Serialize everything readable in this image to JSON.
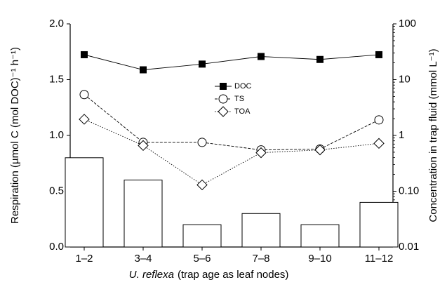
{
  "chart_data": {
    "type": "bar-line",
    "categories": [
      "1–2",
      "3–4",
      "5–6",
      "7–8",
      "9–10",
      "11–12"
    ],
    "values": [
      0.8,
      0.6,
      0.2,
      0.3,
      0.2,
      0.4
    ],
    "color": "#ffffff",
    "ylabel": "Respiration (µmol C (mol DOC)⁻¹ h⁻¹)",
    "y2label": "Concentration in trap fluid (mmol L⁻¹)",
    "xlabel_italic": "U. reflexa",
    "xlabel": "(trap age as leaf nodes)",
    "ylim": [
      0,
      2
    ],
    "yticks": [
      {
        "value": 0,
        "label": "0.0"
      },
      {
        "value": 0.5,
        "label": "0.5"
      },
      {
        "value": 1,
        "label": "1.0"
      },
      {
        "value": 1.5,
        "label": "1.5"
      },
      {
        "value": 2,
        "label": "2.0"
      }
    ],
    "y2lim": [
      0.01,
      100
    ],
    "y2ticks": [
      0.01,
      {
        "value": 0.1,
        "label": "0.10"
      },
      1,
      10,
      100
    ],
    "y2log": true,
    "legend": "top",
    "series": [
      {
        "name": "DOC",
        "color": "#000000",
        "axis": "y2",
        "marker": "square",
        "dash": "solid",
        "values": [
          28,
          15,
          19,
          26,
          23,
          28
        ]
      },
      {
        "name": "TS",
        "color": "#000000",
        "axis": "y2",
        "marker": "circle",
        "dash": "dashed",
        "values": [
          5.4,
          0.75,
          0.75,
          0.55,
          0.57,
          1.9
        ]
      },
      {
        "name": "TOA",
        "color": "#000000",
        "axis": "y2",
        "marker": "diamond",
        "dash": "dotted",
        "values": [
          1.95,
          0.66,
          0.13,
          0.49,
          0.55,
          0.72
        ]
      }
    ]
  }
}
